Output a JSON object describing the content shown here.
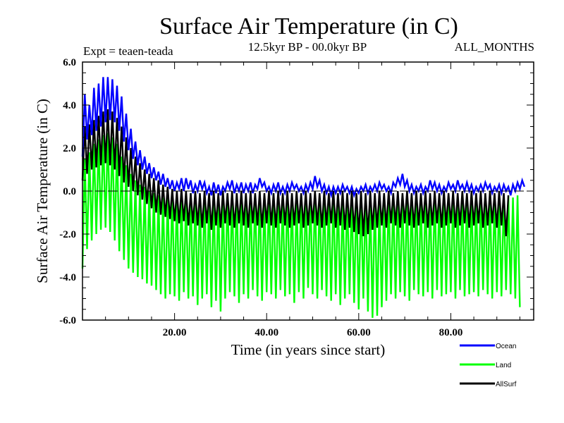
{
  "chart_data": {
    "type": "line",
    "title": "Surface Air Temperature (in C)",
    "subtitle_left": "Expt = teaen-teada",
    "subtitle_center": "12.5kyr BP - 00.0kyr BP",
    "subtitle_right": "ALL_MONTHS",
    "xlabel": "Time (in years since start)",
    "ylabel": "Surface Air Temperature (in C)",
    "xlim": [
      0,
      98
    ],
    "ylim": [
      -6.0,
      6.0
    ],
    "xticks": [
      20,
      40,
      60,
      80
    ],
    "xtick_labels": [
      "20.00",
      "40.00",
      "60.00",
      "80.00"
    ],
    "xminor_step": 5,
    "yticks": [
      -6.0,
      -4.0,
      -2.0,
      0.0,
      2.0,
      4.0,
      6.0
    ],
    "ytick_labels": [
      "-6.0",
      "-4.0",
      "-2.0",
      "0.0",
      "2.0",
      "4.0",
      "6.0"
    ],
    "yminor_step": 0.5,
    "zero_line": true,
    "legend_position": "bottom-right",
    "x_step": 0.5,
    "series": [
      {
        "name": "Ocean",
        "color": "#0000ff",
        "values": [
          1.6,
          4.5,
          2.4,
          4.0,
          2.6,
          4.8,
          2.8,
          5.0,
          3.0,
          5.3,
          3.2,
          5.3,
          3.3,
          5.2,
          3.2,
          4.9,
          2.8,
          4.4,
          2.3,
          3.6,
          1.9,
          2.9,
          1.5,
          2.3,
          1.2,
          1.9,
          1.0,
          1.6,
          0.8,
          1.3,
          0.6,
          1.1,
          0.5,
          0.9,
          0.3,
          0.8,
          0.2,
          0.6,
          0.1,
          0.5,
          0.0,
          0.4,
          0.1,
          0.6,
          0.0,
          0.6,
          0.1,
          0.5,
          -0.1,
          0.3,
          0.0,
          0.5,
          0.1,
          0.4,
          -0.1,
          0.2,
          -0.2,
          0.4,
          -0.1,
          0.3,
          -0.2,
          0.2,
          0.0,
          0.4,
          0.1,
          0.5,
          -0.1,
          0.3,
          0.0,
          0.4,
          -0.1,
          0.3,
          0.0,
          0.4,
          -0.1,
          0.3,
          0.1,
          0.6,
          0.2,
          0.4,
          0.0,
          0.2,
          -0.1,
          0.3,
          0.0,
          0.4,
          -0.1,
          0.2,
          -0.1,
          0.3,
          0.0,
          0.4,
          0.1,
          0.3,
          0.0,
          0.2,
          -0.1,
          0.3,
          0.0,
          0.4,
          0.1,
          0.7,
          0.2,
          0.5,
          0.0,
          0.3,
          -0.1,
          0.2,
          -0.2,
          0.2,
          -0.1,
          0.2,
          -0.1,
          0.3,
          0.0,
          0.2,
          -0.1,
          0.2,
          -0.2,
          0.1,
          -0.1,
          0.2,
          0.0,
          0.3,
          -0.1,
          0.2,
          0.0,
          0.3,
          0.0,
          0.4,
          0.1,
          0.3,
          0.0,
          0.2,
          -0.1,
          0.4,
          0.2,
          0.6,
          0.3,
          0.8,
          0.2,
          0.5,
          0.0,
          0.3,
          -0.1,
          0.2,
          0.0,
          0.3,
          -0.1,
          0.2,
          0.0,
          0.5,
          0.1,
          0.4,
          0.0,
          0.3,
          -0.1,
          0.2,
          0.0,
          0.4,
          0.1,
          0.3,
          0.0,
          0.5,
          0.1,
          0.3,
          0.0,
          0.4,
          0.0,
          0.3,
          -0.1,
          0.2,
          0.0,
          0.3,
          0.0,
          0.4,
          0.1,
          0.3,
          -0.1,
          0.2,
          0.0,
          0.3,
          -0.1,
          0.3,
          0.0,
          0.2,
          -0.2,
          0.3,
          0.0,
          0.4,
          0.1,
          0.5,
          0.2
        ]
      },
      {
        "name": "Land",
        "color": "#00ff00",
        "values": [
          -3.6,
          1.5,
          -2.7,
          1.8,
          -2.3,
          2.2,
          -2.0,
          2.4,
          -1.8,
          2.6,
          -1.7,
          2.7,
          -1.9,
          2.5,
          -2.3,
          2.2,
          -2.8,
          1.6,
          -3.2,
          1.2,
          -3.6,
          0.8,
          -3.8,
          0.5,
          -4.0,
          0.3,
          -4.1,
          0.2,
          -4.3,
          0.0,
          -4.4,
          -0.1,
          -4.6,
          -0.2,
          -4.8,
          -0.3,
          -5.0,
          -0.2,
          -4.8,
          -0.1,
          -4.9,
          -0.2,
          -5.1,
          -0.3,
          -4.7,
          -0.2,
          -5.0,
          -0.1,
          -4.9,
          -0.3,
          -5.3,
          -0.2,
          -5.0,
          -0.1,
          -4.8,
          -0.3,
          -5.4,
          -0.2,
          -5.1,
          -0.3,
          -5.6,
          -0.2,
          -5.0,
          -0.1,
          -4.7,
          -0.2,
          -4.9,
          -0.1,
          -5.2,
          -0.3,
          -4.8,
          -0.2,
          -5.0,
          -0.3,
          -4.6,
          -0.2,
          -4.9,
          -0.1,
          -5.1,
          -0.3,
          -4.7,
          -0.2,
          -4.8,
          -0.1,
          -5.0,
          -0.2,
          -4.6,
          -0.3,
          -4.9,
          -0.1,
          -4.8,
          -0.2,
          -5.2,
          -0.3,
          -4.7,
          -0.2,
          -5.0,
          -0.1,
          -4.5,
          -0.2,
          -4.8,
          -0.1,
          -5.0,
          -0.3,
          -4.6,
          -0.2,
          -4.9,
          -0.3,
          -5.1,
          -0.1,
          -4.8,
          -0.2,
          -5.3,
          -0.3,
          -5.0,
          -0.2,
          -4.8,
          -0.3,
          -5.2,
          -0.2,
          -5.5,
          -0.3,
          -5.0,
          -0.2,
          -5.6,
          -0.3,
          -5.9,
          -0.2,
          -5.8,
          -0.4,
          -5.4,
          -0.3,
          -5.1,
          -0.2,
          -4.8,
          -0.3,
          -5.0,
          -0.2,
          -4.7,
          -0.3,
          -4.9,
          -0.2,
          -5.1,
          -0.3,
          -4.6,
          -0.2,
          -4.8,
          -0.3,
          -4.9,
          -0.2,
          -4.7,
          -0.3,
          -5.0,
          -0.2,
          -4.6,
          -0.3,
          -4.9,
          -0.2,
          -4.8,
          -0.3,
          -4.7,
          -0.2,
          -5.0,
          -0.3,
          -4.6,
          -0.2,
          -4.9,
          -0.3,
          -4.8,
          -0.2,
          -4.7,
          -0.3,
          -4.9,
          -0.2,
          -4.6,
          -0.3,
          -4.8,
          -0.2,
          -5.0,
          -0.3,
          -4.7,
          -0.2,
          -4.9,
          -0.3,
          -4.6,
          -0.2,
          -4.8,
          -0.3,
          -5.0,
          -0.2,
          -5.4
        ]
      },
      {
        "name": "AllSurf",
        "color": "#000000",
        "values": [
          0.5,
          3.0,
          0.8,
          3.1,
          1.0,
          3.3,
          1.1,
          3.5,
          1.2,
          3.7,
          1.3,
          3.8,
          1.2,
          3.7,
          1.0,
          3.4,
          0.7,
          3.0,
          0.4,
          2.5,
          0.2,
          2.0,
          0.0,
          1.6,
          -0.2,
          1.3,
          -0.4,
          1.0,
          -0.6,
          0.8,
          -0.8,
          0.6,
          -1.0,
          0.5,
          -1.1,
          0.3,
          -1.2,
          0.2,
          -1.3,
          0.1,
          -1.4,
          0.0,
          -1.5,
          0.1,
          -1.4,
          0.0,
          -1.6,
          -0.1,
          -1.5,
          0.0,
          -1.6,
          -0.1,
          -1.7,
          0.0,
          -1.5,
          -0.1,
          -1.8,
          0.0,
          -1.6,
          -0.1,
          -1.7,
          0.0,
          -1.5,
          -0.1,
          -1.6,
          0.0,
          -1.7,
          -0.1,
          -1.5,
          0.0,
          -1.6,
          -0.1,
          -1.7,
          0.0,
          -1.5,
          -0.1,
          -1.6,
          0.0,
          -1.7,
          -0.1,
          -1.5,
          0.0,
          -1.6,
          -0.1,
          -1.7,
          0.0,
          -1.5,
          -0.1,
          -1.6,
          0.0,
          -1.7,
          -0.1,
          -1.6,
          0.0,
          -1.5,
          -0.1,
          -1.7,
          0.0,
          -1.6,
          -0.1,
          -1.5,
          0.0,
          -1.6,
          -0.1,
          -1.7,
          0.0,
          -1.6,
          -0.1,
          -1.5,
          0.0,
          -1.7,
          -0.1,
          -1.6,
          0.0,
          -1.8,
          -0.1,
          -1.7,
          0.0,
          -1.9,
          -0.1,
          -2.0,
          0.0,
          -2.1,
          -0.1,
          -2.0,
          0.0,
          -1.8,
          -0.1,
          -1.7,
          0.0,
          -1.6,
          -0.1,
          -1.7,
          0.0,
          -1.5,
          -0.1,
          -1.6,
          0.0,
          -1.7,
          -0.1,
          -1.5,
          0.0,
          -1.6,
          -0.1,
          -1.7,
          0.0,
          -1.6,
          -0.1,
          -1.5,
          0.0,
          -1.7,
          -0.1,
          -1.6,
          0.0,
          -1.5,
          -0.1,
          -1.7,
          0.0,
          -1.6,
          -0.1,
          -1.5,
          0.0,
          -1.7,
          -0.1,
          -1.6,
          0.0,
          -1.5,
          -0.1,
          -1.7,
          0.0,
          -1.6,
          -0.1,
          -1.5,
          0.0,
          -1.7,
          -0.1,
          -1.6,
          0.0,
          -1.5,
          -0.1,
          -1.7,
          0.0,
          -1.6,
          -0.1,
          -2.1,
          -0.2
        ]
      }
    ]
  }
}
